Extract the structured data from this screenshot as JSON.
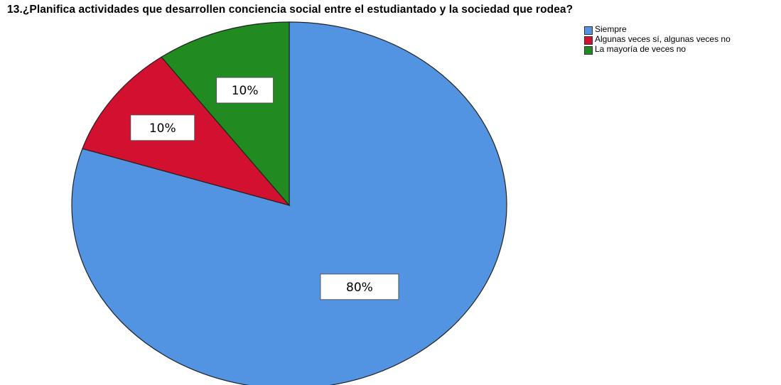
{
  "chart_data": {
    "type": "pie",
    "title": "13.¿Planifica actividades que desarrollen conciencia social entre el estudiantado y la sociedad que rodea?",
    "categories": [
      "Siempre",
      "Algunas veces sí, algunas veces no",
      "La mayoría de veces no"
    ],
    "values": [
      80,
      10,
      10
    ],
    "data_labels": [
      "80%",
      "10%",
      "10%"
    ],
    "colors": [
      "#5294e2",
      "#d2102f",
      "#218a21"
    ],
    "legend": "top-right"
  }
}
